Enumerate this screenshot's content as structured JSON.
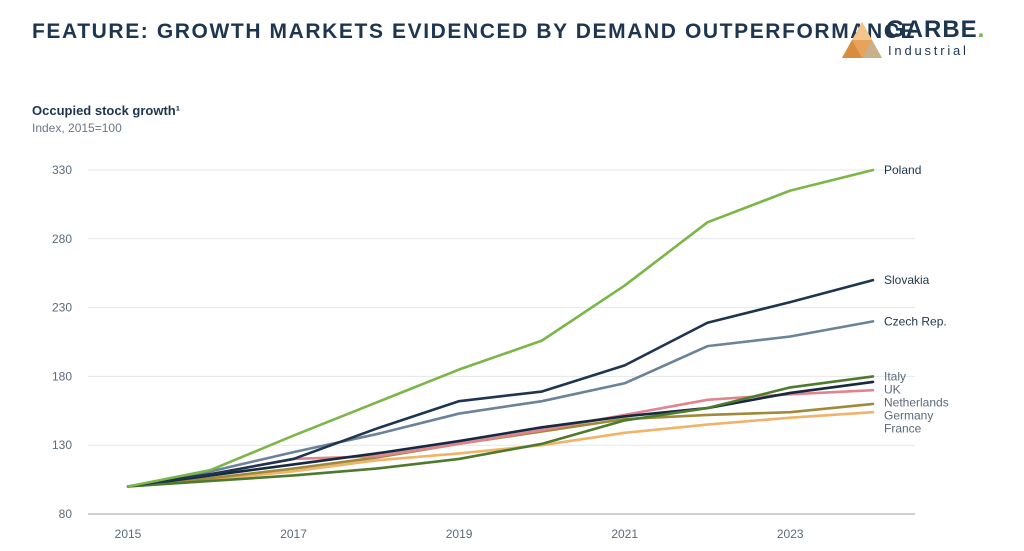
{
  "header": {
    "title": "FEATURE: GROWTH MARKETS EVIDENCED BY DEMAND OUTPERFORMANCE",
    "logo_word": "GARBE",
    "logo_dot": ".",
    "logo_sub": "Industrial"
  },
  "chart_data": {
    "type": "line",
    "title": "Occupied stock growth¹",
    "subtitle": "Index, 2015=100",
    "xlabel": "",
    "ylabel": "",
    "x": [
      2015,
      2016,
      2017,
      2018,
      2019,
      2020,
      2021,
      2022,
      2023,
      2024
    ],
    "xticks": [
      "2015",
      "2017",
      "2019",
      "2021",
      "2023"
    ],
    "yticks": [
      80,
      130,
      180,
      230,
      280,
      330
    ],
    "ylim": [
      80,
      330
    ],
    "xlim": [
      2015,
      2024.5
    ],
    "grid": true,
    "series": [
      {
        "name": "Poland",
        "color": "#7ab648",
        "values": [
          100,
          112,
          137,
          161,
          185,
          206,
          246,
          292,
          315,
          330
        ]
      },
      {
        "name": "Slovakia",
        "color": "#1e3550",
        "values": [
          100,
          109,
          120,
          142,
          162,
          169,
          188,
          219,
          234,
          250
        ]
      },
      {
        "name": "Czech Rep.",
        "color": "#6b8299",
        "values": [
          100,
          111,
          125,
          138,
          153,
          162,
          175,
          202,
          209,
          220
        ]
      },
      {
        "name": "Italy",
        "color": "#4e7a2e",
        "values": [
          100,
          104,
          108,
          113,
          120,
          131,
          148,
          157,
          172,
          180
        ]
      },
      {
        "name": "UK",
        "color": "#152a40",
        "values": [
          100,
          108,
          116,
          124,
          133,
          143,
          151,
          157,
          168,
          176
        ]
      },
      {
        "name": "Netherlands",
        "color": "#e0858f",
        "values": [
          100,
          109,
          120,
          122,
          131,
          141,
          152,
          163,
          167,
          170
        ]
      },
      {
        "name": "Germany",
        "color": "#a08a3a",
        "values": [
          100,
          106,
          113,
          121,
          131,
          140,
          149,
          152,
          154,
          160
        ]
      },
      {
        "name": "France",
        "color": "#f0b36a",
        "values": [
          100,
          105,
          111,
          119,
          124,
          130,
          139,
          145,
          150,
          154
        ]
      }
    ]
  }
}
